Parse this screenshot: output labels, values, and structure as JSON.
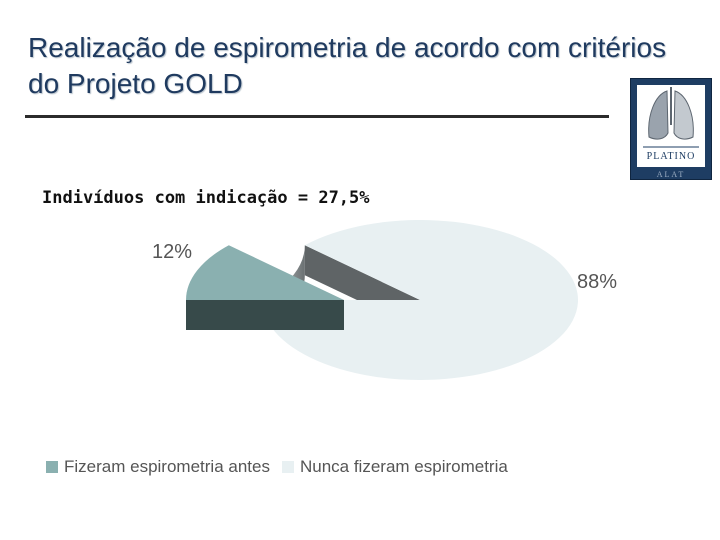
{
  "slide": {
    "title": "Realização de espirometria de acordo com critérios do Projeto GOLD",
    "logo_text": "PLATINO",
    "logo_sub": "ALAT"
  },
  "chart_data": {
    "type": "pie",
    "subtitle": "Indivíduos com indicação = 27,5%",
    "categories": [
      "Fizeram espirometria antes",
      "Nunca fizeram espirometria"
    ],
    "values": [
      12,
      88
    ],
    "labels": [
      "12%",
      "88%"
    ],
    "colors": [
      "#8ab0b0",
      "#e8f0f2"
    ],
    "side_colors": [
      "#374a4a",
      "#a9b1b3"
    ],
    "legend_position": "bottom-left"
  }
}
